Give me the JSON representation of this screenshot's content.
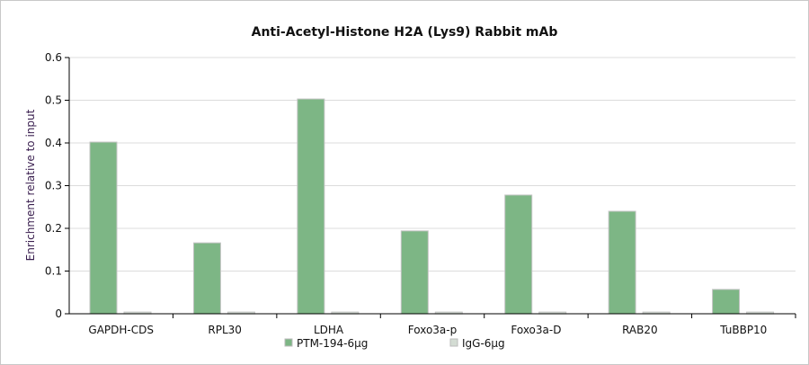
{
  "chart_data": {
    "type": "bar",
    "title": "Anti-Acetyl-Histone H2A (Lys9) Rabbit mAb",
    "xlabel": "",
    "ylabel": "Enrichment relative to input",
    "ylim": [
      0,
      0.6
    ],
    "yticks": [
      "0",
      "0.1",
      "0.2",
      "0.3",
      "0.4",
      "0.5",
      "0.6"
    ],
    "categories": [
      "GAPDH-CDS",
      "RPL30",
      "LDHA",
      "Foxo3a-p",
      "Foxo3a-D",
      "RAB20",
      "TuBBP10"
    ],
    "series": [
      {
        "name": "PTM-194-6μg",
        "color": "#7db685",
        "values": [
          0.402,
          0.166,
          0.503,
          0.194,
          0.278,
          0.24,
          0.057
        ]
      },
      {
        "name": "IgG-6μg",
        "color": "#d3dcd3",
        "values": [
          0.004,
          0.004,
          0.004,
          0.004,
          0.004,
          0.004,
          0.004
        ]
      }
    ],
    "grid": true,
    "legend": "bottom-center"
  }
}
